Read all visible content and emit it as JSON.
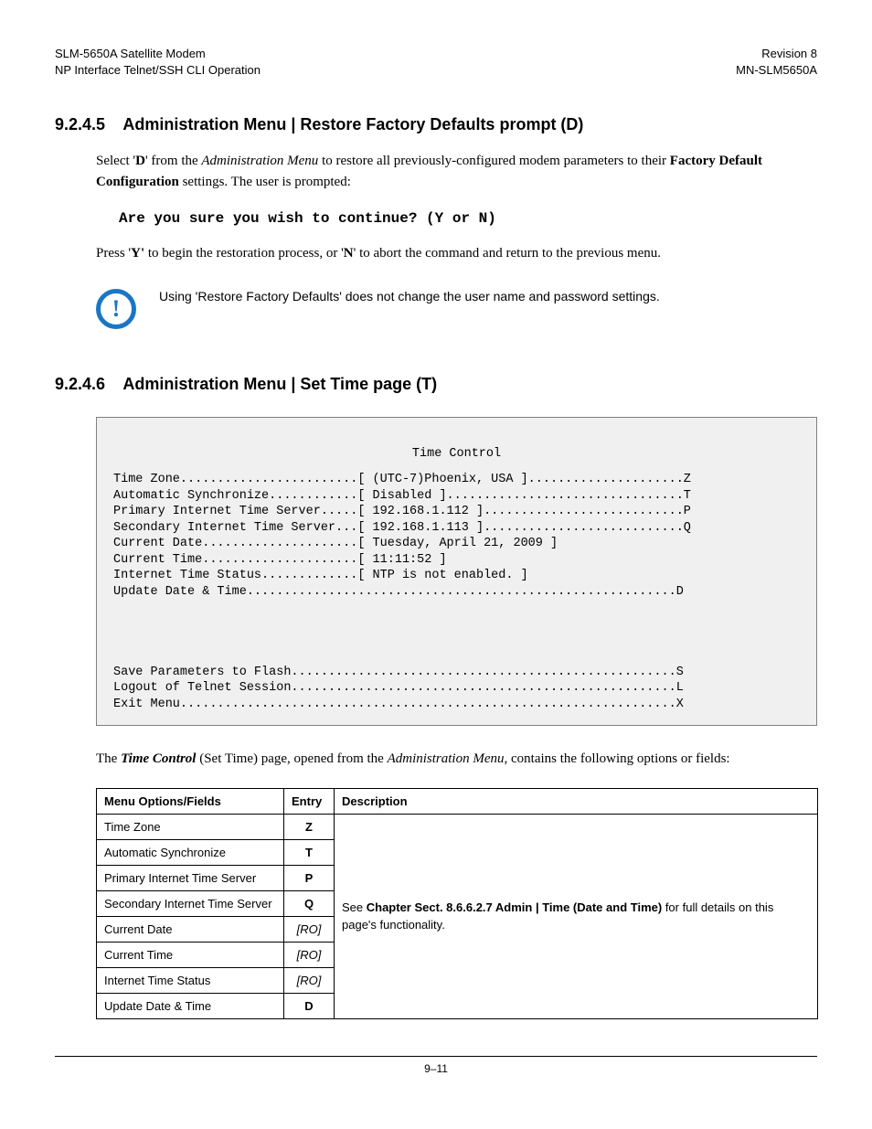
{
  "header": {
    "left_line1": "SLM-5650A Satellite Modem",
    "left_line2": "NP Interface Telnet/SSH CLI Operation",
    "right_line1": "Revision 8",
    "right_line2": "MN-SLM5650A"
  },
  "section1": {
    "number": "9.2.4.5",
    "title": "Administration Menu | Restore Factory Defaults prompt (D)",
    "para1_pre": "Select '",
    "para1_bold1": "D",
    "para1_mid1": "' from the ",
    "para1_ital1": "Administration Menu",
    "para1_mid2": " to restore all previously-configured modem parameters to their ",
    "para1_bold2": "Factory Default Configuration",
    "para1_end": " settings. The user is prompted:",
    "prompt": "Are you sure you wish to continue? (Y or N)",
    "para2_pre": "Press '",
    "para2_bold1": "Y'",
    "para2_mid": " to begin the restoration process, or '",
    "para2_bold2": "N",
    "para2_end": "' to abort the command and return to the previous menu.",
    "note": "Using 'Restore Factory Defaults' does not change the user name and password settings."
  },
  "section2": {
    "number": "9.2.4.6",
    "title": "Administration Menu | Set Time page (T)",
    "terminal": {
      "title": "Time Control",
      "lines": [
        "Time Zone........................[ (UTC-7)Phoenix, USA ].....................Z",
        "Automatic Synchronize............[ Disabled ]................................T",
        "Primary Internet Time Server.....[ 192.168.1.112 ]...........................P",
        "Secondary Internet Time Server...[ 192.168.1.113 ]...........................Q",
        "Current Date.....................[ Tuesday, April 21, 2009 ]",
        "Current Time.....................[ 11:11:52 ]",
        "Internet Time Status.............[ NTP is not enabled. ]",
        "Update Date & Time..........................................................D",
        "",
        "",
        "",
        "",
        "Save Parameters to Flash....................................................S",
        "Logout of Telnet Session....................................................L",
        "Exit Menu...................................................................X"
      ]
    },
    "intro_pre": "The ",
    "intro_bold_ital": "Time Control",
    "intro_mid": " (Set Time) page, opened from the ",
    "intro_ital": "Administration Menu,",
    "intro_end": " contains the following options or fields:",
    "table": {
      "head_col1": "Menu Options/Fields",
      "head_col2": "Entry",
      "head_col3": "Description",
      "rows": [
        {
          "opt": "Time Zone",
          "entry": "Z",
          "ro": false
        },
        {
          "opt": "Automatic Synchronize",
          "entry": "T",
          "ro": false
        },
        {
          "opt": "Primary Internet Time Server",
          "entry": "P",
          "ro": false
        },
        {
          "opt": "Secondary Internet Time Server",
          "entry": "Q",
          "ro": false
        },
        {
          "opt": "Current Date",
          "entry": "[RO]",
          "ro": true
        },
        {
          "opt": "Current Time",
          "entry": "[RO]",
          "ro": true
        },
        {
          "opt": "Internet Time Status",
          "entry": "[RO]",
          "ro": true
        },
        {
          "opt": "Update Date & Time",
          "entry": "D",
          "ro": false
        }
      ],
      "desc_pre": "See ",
      "desc_bold": "Chapter Sect. 8.6.6.2.7 Admin | Time (Date and Time)",
      "desc_end": " for full details on this page's functionality."
    }
  },
  "footer": "9–11"
}
